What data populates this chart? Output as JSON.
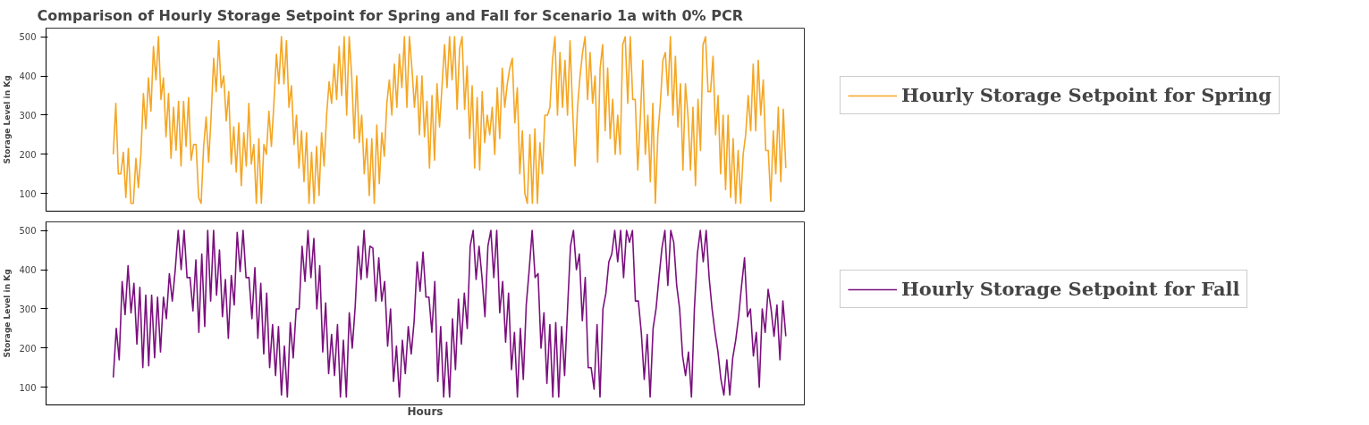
{
  "chart_data": [
    {
      "type": "line",
      "title": "Comparison of Hourly Storage Setpoint for Spring and Fall for Scenario 1a with 0% PCR",
      "ylabel": "Storage Level in Kg",
      "ylim": [
        55,
        522
      ],
      "yticks": [
        100,
        200,
        300,
        400,
        500
      ],
      "grid": false,
      "legend": "right",
      "line_style": "solid",
      "marker": "none",
      "categories": [
        null,
        null,
        null,
        null,
        null,
        null,
        null,
        null,
        null,
        null,
        null,
        null,
        null,
        null,
        null,
        null,
        null,
        null,
        null,
        null,
        null,
        null,
        null,
        null,
        null,
        null,
        null,
        null,
        null,
        null,
        null,
        null,
        null,
        null,
        null,
        null,
        null,
        null,
        null,
        null,
        null,
        null,
        null,
        null,
        null,
        null,
        null,
        null,
        null,
        null,
        null,
        null,
        null,
        null,
        null,
        null,
        null,
        null,
        null,
        null,
        null,
        null,
        null,
        null,
        null,
        null,
        null,
        null,
        null,
        null,
        null,
        null,
        null,
        null,
        null,
        null,
        null,
        null,
        null,
        null,
        null,
        null,
        null,
        null,
        null,
        null,
        null,
        null,
        null,
        null,
        null,
        null,
        null,
        null,
        null,
        null,
        null,
        null,
        null,
        null,
        null,
        null,
        null,
        null,
        null,
        null,
        null,
        null,
        null,
        null,
        null,
        null,
        null,
        null,
        null,
        null,
        null,
        null,
        null,
        null,
        null,
        null,
        null,
        null,
        null,
        null,
        null,
        null,
        null,
        null,
        null,
        null,
        null,
        null,
        null,
        null,
        null,
        null,
        null,
        null,
        null,
        null,
        null,
        null,
        null,
        null,
        null,
        null,
        null,
        null,
        null,
        null,
        null,
        null,
        null,
        null,
        null,
        null,
        null,
        null,
        null,
        null,
        null,
        null,
        null,
        null,
        null,
        null,
        null,
        null,
        null,
        null,
        null,
        null,
        null,
        null,
        null,
        null,
        null,
        null,
        null,
        null,
        null,
        null,
        null,
        null,
        null,
        null,
        null,
        null,
        null,
        null,
        null,
        null,
        null,
        null,
        null,
        null,
        null,
        null,
        null,
        null,
        null,
        null,
        null,
        null,
        null,
        null,
        null,
        null,
        null,
        null,
        null,
        null,
        null,
        null,
        null,
        null,
        null,
        null,
        null,
        null,
        null,
        null,
        null,
        null,
        null,
        null,
        null,
        null,
        null,
        null,
        null,
        null,
        null,
        null,
        null,
        null,
        null,
        null,
        null,
        null,
        null,
        null,
        null,
        null,
        null,
        null,
        null,
        null,
        null,
        null,
        null,
        null,
        null,
        null,
        null,
        null,
        null,
        null,
        null,
        null,
        null,
        null,
        null,
        null,
        null,
        null,
        null
      ],
      "series": [
        {
          "name": "Hourly Storage Setpoint for Spring",
          "color": "#f5a623",
          "values": [
            200,
            330,
            150,
            150,
            205,
            90,
            215,
            75,
            75,
            190,
            115,
            200,
            355,
            265,
            395,
            310,
            475,
            390,
            500,
            340,
            395,
            245,
            355,
            190,
            320,
            210,
            335,
            170,
            335,
            220,
            345,
            185,
            225,
            225,
            90,
            75,
            220,
            295,
            180,
            300,
            445,
            360,
            490,
            370,
            400,
            285,
            360,
            175,
            270,
            155,
            280,
            120,
            255,
            170,
            330,
            175,
            225,
            75,
            240,
            75,
            225,
            200,
            310,
            220,
            330,
            455,
            380,
            500,
            380,
            490,
            320,
            375,
            225,
            300,
            165,
            260,
            130,
            255,
            75,
            205,
            75,
            220,
            95,
            255,
            170,
            300,
            385,
            330,
            430,
            340,
            475,
            350,
            500,
            300,
            500,
            400,
            240,
            400,
            230,
            300,
            150,
            240,
            95,
            240,
            75,
            275,
            125,
            255,
            195,
            330,
            390,
            300,
            430,
            320,
            455,
            370,
            500,
            320,
            500,
            420,
            320,
            400,
            250,
            400,
            245,
            335,
            165,
            350,
            185,
            380,
            270,
            375,
            480,
            370,
            500,
            390,
            500,
            315,
            470,
            500,
            315,
            425,
            240,
            375,
            165,
            345,
            160,
            360,
            230,
            300,
            250,
            320,
            200,
            370,
            240,
            420,
            320,
            380,
            420,
            445,
            280,
            370,
            150,
            260,
            100,
            75,
            250,
            75,
            265,
            75,
            230,
            150,
            300,
            300,
            320,
            440,
            500,
            300,
            460,
            320,
            440,
            300,
            490,
            320,
            170,
            320,
            400,
            460,
            500,
            340,
            460,
            330,
            400,
            180,
            420,
            480,
            260,
            420,
            240,
            340,
            200,
            300,
            200,
            480,
            500,
            330,
            500,
            340,
            340,
            160,
            290,
            440,
            200,
            300,
            130,
            330,
            75,
            250,
            330,
            440,
            460,
            350,
            500,
            300,
            450,
            270,
            380,
            160,
            380,
            300,
            160,
            320,
            120,
            340,
            210,
            480,
            500,
            360,
            360,
            450,
            250,
            350,
            150,
            300,
            110,
            300,
            90,
            240,
            75,
            210,
            75,
            200,
            250,
            350,
            260,
            430,
            260,
            440,
            300,
            390,
            210,
            210,
            80,
            260,
            150,
            320,
            130,
            315,
            165
          ]
        }
      ]
    },
    {
      "type": "line",
      "xlabel": "Hours",
      "ylabel": "Storage Level in Kg",
      "ylim": [
        55,
        522
      ],
      "yticks": [
        100,
        200,
        300,
        400,
        500
      ],
      "grid": false,
      "legend": "right",
      "line_style": "solid",
      "marker": "none",
      "categories": [
        null,
        null,
        null,
        null,
        null,
        null,
        null,
        null,
        null,
        null,
        null,
        null,
        null,
        null,
        null,
        null,
        null,
        null,
        null,
        null,
        null,
        null,
        null,
        null,
        null,
        null,
        null,
        null,
        null,
        null,
        null,
        null,
        null,
        null,
        null,
        null,
        null,
        null,
        null,
        null,
        null,
        null,
        null,
        null,
        null,
        null,
        null,
        null,
        null,
        null,
        null,
        null,
        null,
        null,
        null,
        null,
        null,
        null,
        null,
        null,
        null,
        null,
        null,
        null,
        null,
        null,
        null,
        null,
        null,
        null,
        null,
        null,
        null,
        null,
        null,
        null,
        null,
        null,
        null,
        null,
        null,
        null,
        null,
        null,
        null,
        null,
        null,
        null,
        null,
        null,
        null,
        null,
        null,
        null,
        null,
        null,
        null,
        null,
        null,
        null,
        null,
        null,
        null,
        null,
        null,
        null,
        null,
        null,
        null,
        null,
        null,
        null,
        null,
        null,
        null,
        null,
        null,
        null,
        null,
        null,
        null,
        null,
        null,
        null,
        null,
        null,
        null,
        null,
        null,
        null,
        null,
        null,
        null,
        null,
        null,
        null,
        null,
        null,
        null,
        null,
        null,
        null,
        null,
        null,
        null,
        null,
        null,
        null,
        null,
        null,
        null,
        null,
        null,
        null,
        null,
        null,
        null,
        null,
        null,
        null,
        null,
        null,
        null,
        null,
        null,
        null,
        null,
        null,
        null,
        null,
        null,
        null,
        null,
        null,
        null,
        null,
        null,
        null,
        null,
        null,
        null,
        null,
        null,
        null,
        null,
        null,
        null,
        null,
        null,
        null,
        null,
        null,
        null,
        null,
        null,
        null,
        null,
        null,
        null,
        null,
        null,
        null,
        null,
        null,
        null,
        null,
        null,
        null,
        null,
        null,
        null,
        null,
        null,
        null,
        null,
        null,
        null,
        null,
        null,
        null,
        null,
        null,
        null,
        null,
        null,
        null,
        null,
        null,
        null
      ],
      "series": [
        {
          "name": "Hourly Storage Setpoint for Fall",
          "color": "#7b0f7e",
          "values": [
            125,
            250,
            170,
            370,
            285,
            410,
            290,
            365,
            210,
            355,
            150,
            335,
            155,
            335,
            175,
            330,
            190,
            330,
            275,
            390,
            320,
            400,
            500,
            400,
            500,
            380,
            380,
            295,
            425,
            240,
            440,
            255,
            500,
            320,
            500,
            335,
            450,
            280,
            375,
            225,
            385,
            310,
            495,
            395,
            500,
            380,
            380,
            275,
            405,
            225,
            365,
            185,
            340,
            150,
            260,
            130,
            255,
            80,
            205,
            75,
            265,
            175,
            300,
            300,
            460,
            370,
            500,
            380,
            480,
            300,
            410,
            190,
            315,
            135,
            235,
            130,
            260,
            75,
            220,
            75,
            290,
            200,
            305,
            460,
            375,
            500,
            380,
            460,
            455,
            320,
            430,
            320,
            370,
            205,
            300,
            115,
            205,
            75,
            220,
            135,
            255,
            185,
            270,
            420,
            345,
            445,
            330,
            330,
            240,
            370,
            115,
            255,
            75,
            215,
            75,
            275,
            145,
            325,
            210,
            340,
            250,
            460,
            500,
            375,
            460,
            380,
            280,
            460,
            500,
            380,
            500,
            290,
            370,
            215,
            340,
            145,
            240,
            75,
            250,
            120,
            310,
            400,
            500,
            380,
            390,
            200,
            290,
            110,
            260,
            75,
            265,
            75,
            255,
            130,
            300,
            460,
            500,
            400,
            440,
            270,
            380,
            150,
            150,
            95,
            260,
            75,
            300,
            340,
            420,
            440,
            500,
            420,
            500,
            380,
            500,
            470,
            500,
            320,
            320,
            240,
            120,
            235,
            75,
            250,
            300,
            380,
            455,
            500,
            360,
            500,
            470,
            360,
            300,
            180,
            130,
            190,
            75,
            300,
            440,
            500,
            420,
            500,
            380,
            300,
            240,
            190,
            120,
            80,
            170,
            80,
            175,
            220,
            280,
            360,
            430,
            280,
            300,
            180,
            240,
            100,
            300,
            240,
            350,
            300,
            230,
            310,
            170,
            320,
            230
          ]
        }
      ]
    }
  ]
}
